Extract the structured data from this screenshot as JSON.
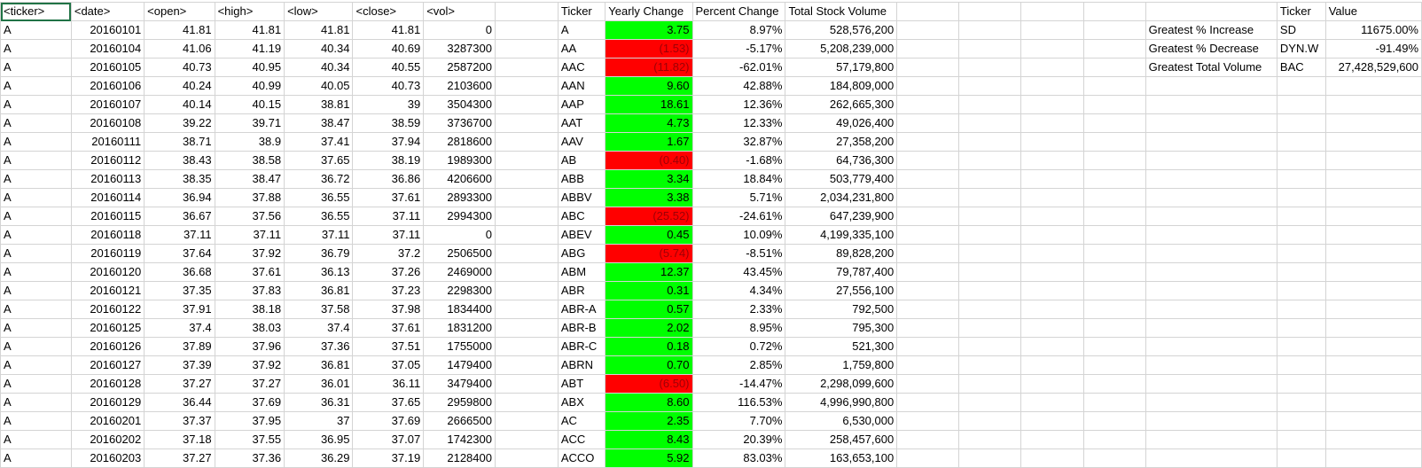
{
  "colors": {
    "positive": "#00ff00",
    "negative": "#ff0000",
    "selection": "#217346",
    "gridline": "#d4d4d4"
  },
  "sheet": {
    "raw_headers": [
      "<ticker>",
      "<date>",
      "<open>",
      "<high>",
      "<low>",
      "<close>",
      "<vol>"
    ],
    "raw_rows": [
      [
        "A",
        "20160101",
        "41.81",
        "41.81",
        "41.81",
        "41.81",
        "0"
      ],
      [
        "A",
        "20160104",
        "41.06",
        "41.19",
        "40.34",
        "40.69",
        "3287300"
      ],
      [
        "A",
        "20160105",
        "40.73",
        "40.95",
        "40.34",
        "40.55",
        "2587200"
      ],
      [
        "A",
        "20160106",
        "40.24",
        "40.99",
        "40.05",
        "40.73",
        "2103600"
      ],
      [
        "A",
        "20160107",
        "40.14",
        "40.15",
        "38.81",
        "39",
        "3504300"
      ],
      [
        "A",
        "20160108",
        "39.22",
        "39.71",
        "38.47",
        "38.59",
        "3736700"
      ],
      [
        "A",
        "20160111",
        "38.71",
        "38.9",
        "37.41",
        "37.94",
        "2818600"
      ],
      [
        "A",
        "20160112",
        "38.43",
        "38.58",
        "37.65",
        "38.19",
        "1989300"
      ],
      [
        "A",
        "20160113",
        "38.35",
        "38.47",
        "36.72",
        "36.86",
        "4206600"
      ],
      [
        "A",
        "20160114",
        "36.94",
        "37.88",
        "36.55",
        "37.61",
        "2893300"
      ],
      [
        "A",
        "20160115",
        "36.67",
        "37.56",
        "36.55",
        "37.11",
        "2994300"
      ],
      [
        "A",
        "20160118",
        "37.11",
        "37.11",
        "37.11",
        "37.11",
        "0"
      ],
      [
        "A",
        "20160119",
        "37.64",
        "37.92",
        "36.79",
        "37.2",
        "2506500"
      ],
      [
        "A",
        "20160120",
        "36.68",
        "37.61",
        "36.13",
        "37.26",
        "2469000"
      ],
      [
        "A",
        "20160121",
        "37.35",
        "37.83",
        "36.81",
        "37.23",
        "2298300"
      ],
      [
        "A",
        "20160122",
        "37.91",
        "38.18",
        "37.58",
        "37.98",
        "1834400"
      ],
      [
        "A",
        "20160125",
        "37.4",
        "38.03",
        "37.4",
        "37.61",
        "1831200"
      ],
      [
        "A",
        "20160126",
        "37.89",
        "37.96",
        "37.36",
        "37.51",
        "1755000"
      ],
      [
        "A",
        "20160127",
        "37.39",
        "37.92",
        "36.81",
        "37.05",
        "1479400"
      ],
      [
        "A",
        "20160128",
        "37.27",
        "37.27",
        "36.01",
        "36.11",
        "3479400"
      ],
      [
        "A",
        "20160129",
        "36.44",
        "37.69",
        "36.31",
        "37.65",
        "2959800"
      ],
      [
        "A",
        "20160201",
        "37.37",
        "37.95",
        "37",
        "37.69",
        "2666500"
      ],
      [
        "A",
        "20160202",
        "37.18",
        "37.55",
        "36.95",
        "37.07",
        "1742300"
      ],
      [
        "A",
        "20160203",
        "37.27",
        "37.36",
        "36.29",
        "37.19",
        "2128400"
      ]
    ],
    "summary_headers": [
      "Ticker",
      "Yearly Change",
      "Percent Change",
      "Total Stock Volume"
    ],
    "summary_rows": [
      {
        "ticker": "A",
        "change": "3.75",
        "pct": "8.97%",
        "vol": "528,576,200",
        "sign": "pos"
      },
      {
        "ticker": "AA",
        "change": "(1.53)",
        "pct": "-5.17%",
        "vol": "5,208,239,000",
        "sign": "neg"
      },
      {
        "ticker": "AAC",
        "change": "(11.82)",
        "pct": "-62.01%",
        "vol": "57,179,800",
        "sign": "neg"
      },
      {
        "ticker": "AAN",
        "change": "9.60",
        "pct": "42.88%",
        "vol": "184,809,000",
        "sign": "pos"
      },
      {
        "ticker": "AAP",
        "change": "18.61",
        "pct": "12.36%",
        "vol": "262,665,300",
        "sign": "pos"
      },
      {
        "ticker": "AAT",
        "change": "4.73",
        "pct": "12.33%",
        "vol": "49,026,400",
        "sign": "pos"
      },
      {
        "ticker": "AAV",
        "change": "1.67",
        "pct": "32.87%",
        "vol": "27,358,200",
        "sign": "pos"
      },
      {
        "ticker": "AB",
        "change": "(0.40)",
        "pct": "-1.68%",
        "vol": "64,736,300",
        "sign": "neg"
      },
      {
        "ticker": "ABB",
        "change": "3.34",
        "pct": "18.84%",
        "vol": "503,779,400",
        "sign": "pos"
      },
      {
        "ticker": "ABBV",
        "change": "3.38",
        "pct": "5.71%",
        "vol": "2,034,231,800",
        "sign": "pos"
      },
      {
        "ticker": "ABC",
        "change": "(25.52)",
        "pct": "-24.61%",
        "vol": "647,239,900",
        "sign": "neg"
      },
      {
        "ticker": "ABEV",
        "change": "0.45",
        "pct": "10.09%",
        "vol": "4,199,335,100",
        "sign": "pos"
      },
      {
        "ticker": "ABG",
        "change": "(5.74)",
        "pct": "-8.51%",
        "vol": "89,828,200",
        "sign": "neg"
      },
      {
        "ticker": "ABM",
        "change": "12.37",
        "pct": "43.45%",
        "vol": "79,787,400",
        "sign": "pos"
      },
      {
        "ticker": "ABR",
        "change": "0.31",
        "pct": "4.34%",
        "vol": "27,556,100",
        "sign": "pos"
      },
      {
        "ticker": "ABR-A",
        "change": "0.57",
        "pct": "2.33%",
        "vol": "792,500",
        "sign": "pos"
      },
      {
        "ticker": "ABR-B",
        "change": "2.02",
        "pct": "8.95%",
        "vol": "795,300",
        "sign": "pos"
      },
      {
        "ticker": "ABR-C",
        "change": "0.18",
        "pct": "0.72%",
        "vol": "521,300",
        "sign": "pos"
      },
      {
        "ticker": "ABRN",
        "change": "0.70",
        "pct": "2.85%",
        "vol": "1,759,800",
        "sign": "pos"
      },
      {
        "ticker": "ABT",
        "change": "(6.50)",
        "pct": "-14.47%",
        "vol": "2,298,099,600",
        "sign": "neg"
      },
      {
        "ticker": "ABX",
        "change": "8.60",
        "pct": "116.53%",
        "vol": "4,996,990,800",
        "sign": "pos"
      },
      {
        "ticker": "AC",
        "change": "2.35",
        "pct": "7.70%",
        "vol": "6,530,000",
        "sign": "pos"
      },
      {
        "ticker": "ACC",
        "change": "8.43",
        "pct": "20.39%",
        "vol": "258,457,600",
        "sign": "pos"
      },
      {
        "ticker": "ACCO",
        "change": "5.92",
        "pct": "83.03%",
        "vol": "163,653,100",
        "sign": "pos"
      }
    ],
    "greatest_headers": [
      "Ticker",
      "Value"
    ],
    "greatest_rows": [
      {
        "label": "Greatest % Increase",
        "ticker": "SD",
        "value": "11675.00%"
      },
      {
        "label": "Greatest % Decrease",
        "ticker": "DYN.W",
        "value": "-91.49%"
      },
      {
        "label": "Greatest Total Volume",
        "ticker": "BAC",
        "value": "27,428,529,600"
      }
    ]
  }
}
